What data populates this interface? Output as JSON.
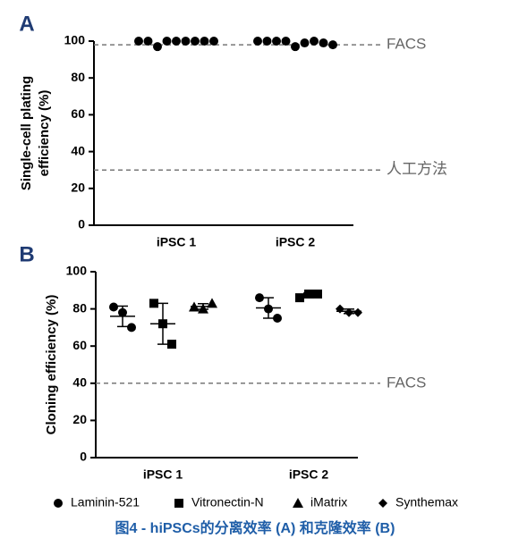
{
  "chart_data": [
    {
      "type": "strip",
      "panel_label": "A",
      "ylabel": [
        "Single-cell plating",
        "efficiency (%)"
      ],
      "categories": [
        "iPSC 1",
        "iPSC 2"
      ],
      "values": [
        [
          100,
          100,
          97,
          100,
          100,
          100,
          100,
          100,
          100
        ],
        [
          100,
          100,
          100,
          100,
          97,
          99,
          100,
          99,
          98
        ]
      ],
      "color": "#000000",
      "ylim": [
        0,
        100
      ],
      "yticks": [
        0,
        20,
        40,
        60,
        80,
        100
      ],
      "reference_lines": [
        {
          "value": 98,
          "label": "FACS"
        },
        {
          "value": 30,
          "label": "人工方法"
        }
      ]
    },
    {
      "type": "grouped_strip",
      "panel_label": "B",
      "ylabel": [
        "Cloning efficiency (%)"
      ],
      "categories": [
        "iPSC 1",
        "iPSC 2"
      ],
      "series": [
        {
          "name": "Laminin-521",
          "marker": "circle",
          "color": "#000000",
          "points": [
            [
              81,
              70,
              78
            ],
            [
              86,
              75,
              80
            ]
          ],
          "mean": [
            76,
            80.5
          ],
          "sd": [
            5.5,
            5.5
          ]
        },
        {
          "name": "Vitronectin-N",
          "marker": "square",
          "color": "#000000",
          "points": [
            [
              83,
              61,
              72
            ],
            [
              86,
              88,
              88
            ]
          ],
          "mean": [
            72,
            87.3
          ],
          "sd": [
            11,
            1.2
          ]
        },
        {
          "name": "iMatrix",
          "marker": "triangle",
          "color": "#000000",
          "points": [
            [
              81,
              83,
              80
            ],
            null
          ],
          "mean": [
            81.3,
            null
          ],
          "sd": [
            1.5,
            null
          ]
        },
        {
          "name": "Synthemax",
          "marker": "diamond",
          "color": "#000000",
          "points": [
            null,
            [
              80,
              78,
              78
            ]
          ],
          "mean": [
            null,
            78.7
          ],
          "sd": [
            null,
            1.2
          ]
        }
      ],
      "ylim": [
        0,
        100
      ],
      "yticks": [
        0,
        20,
        40,
        60,
        80,
        100
      ],
      "reference_lines": [
        {
          "value": 40,
          "label": "FACS"
        }
      ]
    }
  ],
  "caption": "图4 - hiPSCs的分离效率 (A) 和克隆效率 (B)"
}
